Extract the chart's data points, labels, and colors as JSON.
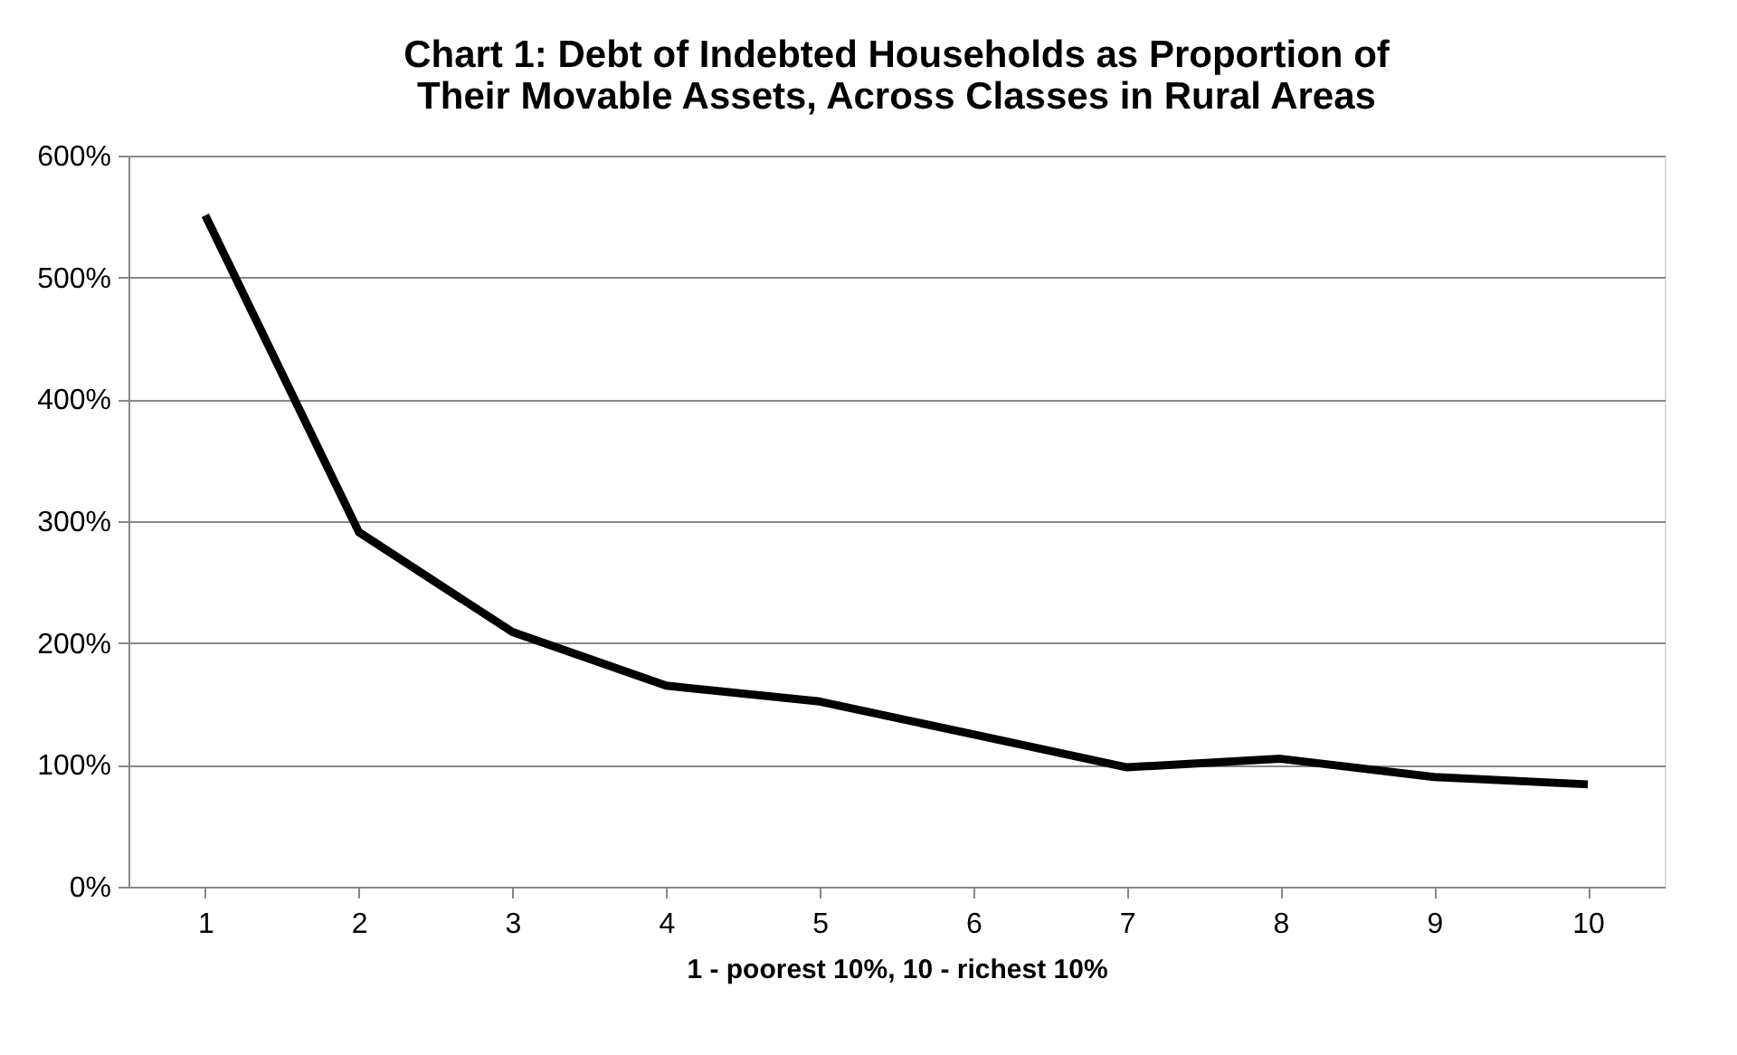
{
  "chart_data": {
    "type": "line",
    "title": [
      "Chart 1: Debt of Indebted Households as Proportion of",
      "Their Movable Assets, Across Classes in Rural Areas"
    ],
    "xlabel": "1 - poorest 10%, 10 - richest 10%",
    "categories": [
      "1",
      "2",
      "3",
      "4",
      "5",
      "6",
      "7",
      "8",
      "9",
      "10"
    ],
    "series": [
      {
        "color": "#000000",
        "values": [
          551,
          291,
          209,
          165,
          152,
          125,
          98,
          105,
          90,
          84
        ]
      }
    ],
    "ylim": [
      0,
      600
    ],
    "yticks": [
      {
        "value": 0,
        "label": "0%"
      },
      {
        "value": 100,
        "label": "100%"
      },
      {
        "value": 200,
        "label": "200%"
      },
      {
        "value": 300,
        "label": "300%"
      },
      {
        "value": 400,
        "label": "400%"
      },
      {
        "value": 500,
        "label": "500%"
      },
      {
        "value": 600,
        "label": "600%"
      }
    ],
    "grid": "y",
    "marker": "none",
    "line_style": "solid"
  }
}
